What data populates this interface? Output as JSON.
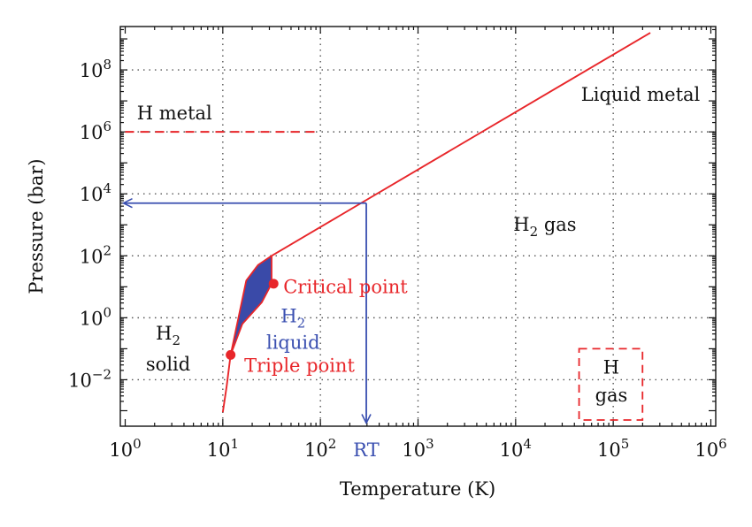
{
  "chart_data": {
    "type": "phase-diagram",
    "title": "",
    "xlabel": "Temperature (K)",
    "ylabel": "Pressure (bar)",
    "x_scale": "log",
    "y_scale": "log",
    "x_log_range": [
      -0.05,
      6.05
    ],
    "y_log_range": [
      -3.5,
      9.4
    ],
    "x_ticks": [
      {
        "log": 0,
        "base": "10",
        "exp": "0"
      },
      {
        "log": 1,
        "base": "10",
        "exp": "1"
      },
      {
        "log": 2,
        "base": "10",
        "exp": "2"
      },
      {
        "log": 3,
        "base": "10",
        "exp": "3"
      },
      {
        "log": 4,
        "base": "10",
        "exp": "4"
      },
      {
        "log": 5,
        "base": "10",
        "exp": "5"
      },
      {
        "log": 6,
        "base": "10",
        "exp": "6"
      }
    ],
    "y_ticks": [
      {
        "log": -2,
        "base": "10",
        "exp": "−2"
      },
      {
        "log": 0,
        "base": "10",
        "exp": "0"
      },
      {
        "log": 2,
        "base": "10",
        "exp": "2"
      },
      {
        "log": 4,
        "base": "10",
        "exp": "4"
      },
      {
        "log": 6,
        "base": "10",
        "exp": "6"
      },
      {
        "log": 8,
        "base": "10",
        "exp": "8"
      }
    ],
    "grid": "dotted",
    "colors": {
      "curve": "#e8262a",
      "blue": "#3a4fb0",
      "fill": "#3a4aa8",
      "text": "#111111"
    },
    "series": [
      {
        "name": "melting curve",
        "points": [
          [
            1.0,
            -3.05
          ],
          [
            1.04,
            -2.2
          ],
          [
            1.08,
            -1.2
          ]
        ]
      },
      {
        "name": "boiling / critical line",
        "points": [
          [
            1.5,
            2.0
          ],
          [
            5.38,
            9.2
          ]
        ]
      },
      {
        "name": "H metal boundary",
        "style": "dashed",
        "points": [
          [
            0.0,
            6.0
          ],
          [
            2.0,
            6.0
          ]
        ]
      }
    ],
    "liquid_region": {
      "upper": [
        [
          1.08,
          -1.2
        ],
        [
          1.24,
          1.2
        ],
        [
          1.36,
          1.7
        ],
        [
          1.5,
          2.0
        ]
      ],
      "lower": [
        [
          1.5,
          2.0
        ],
        [
          1.5,
          1.1
        ],
        [
          1.4,
          0.5
        ],
        [
          1.2,
          -0.2
        ],
        [
          1.08,
          -1.2
        ]
      ]
    },
    "points": [
      {
        "name": "Critical point",
        "t": 1.52,
        "p": 1.1
      },
      {
        "name": "Triple point",
        "t": 1.08,
        "p": -1.2
      }
    ],
    "rt_marker": {
      "label": "RT",
      "t": 2.47,
      "p": 3.7,
      "bottom_p": -3.4,
      "left_t": 0.0
    },
    "h_gas_box": {
      "t_min": 4.65,
      "t_max": 5.3,
      "p_min": -3.3,
      "p_max": -1.0
    },
    "regions": [
      {
        "name": "h-metal",
        "text": "H metal",
        "t": 0.12,
        "p": 6.6,
        "anchor": "start",
        "color": "text"
      },
      {
        "name": "liquid-metal",
        "text": "Liquid metal",
        "t": 5.28,
        "p": 7.2,
        "anchor": "middle",
        "color": "text"
      },
      {
        "name": "h2-gas",
        "text": "gas",
        "prefix": "H",
        "sub": "2",
        "t": 4.3,
        "p": 3.0,
        "anchor": "middle",
        "color": "text"
      },
      {
        "name": "h2-solid-top",
        "prefix": "H",
        "sub": "2",
        "text": "",
        "t": 0.44,
        "p": -0.5,
        "anchor": "middle",
        "color": "text"
      },
      {
        "name": "h2-solid",
        "text": "solid",
        "t": 0.44,
        "p": -1.5,
        "anchor": "middle",
        "color": "text"
      },
      {
        "name": "h2-liquid-top",
        "prefix": "H",
        "sub": "2",
        "text": "",
        "t": 1.72,
        "p": 0.05,
        "anchor": "middle",
        "color": "blue"
      },
      {
        "name": "h2-liquid",
        "text": "liquid",
        "t": 1.72,
        "p": -0.8,
        "anchor": "middle",
        "color": "blue"
      },
      {
        "name": "h-gas-top",
        "text": "H",
        "t": 4.98,
        "p": -1.6,
        "anchor": "middle",
        "color": "text"
      },
      {
        "name": "h-gas",
        "text": "gas",
        "t": 4.98,
        "p": -2.5,
        "anchor": "middle",
        "color": "text"
      },
      {
        "name": "critical-point-label",
        "text": "Critical point",
        "t": 1.62,
        "p": 1.0,
        "anchor": "start",
        "color": "curve"
      },
      {
        "name": "triple-point-label",
        "text": "Triple point",
        "t": 1.22,
        "p": -1.55,
        "anchor": "start",
        "color": "curve"
      }
    ]
  }
}
